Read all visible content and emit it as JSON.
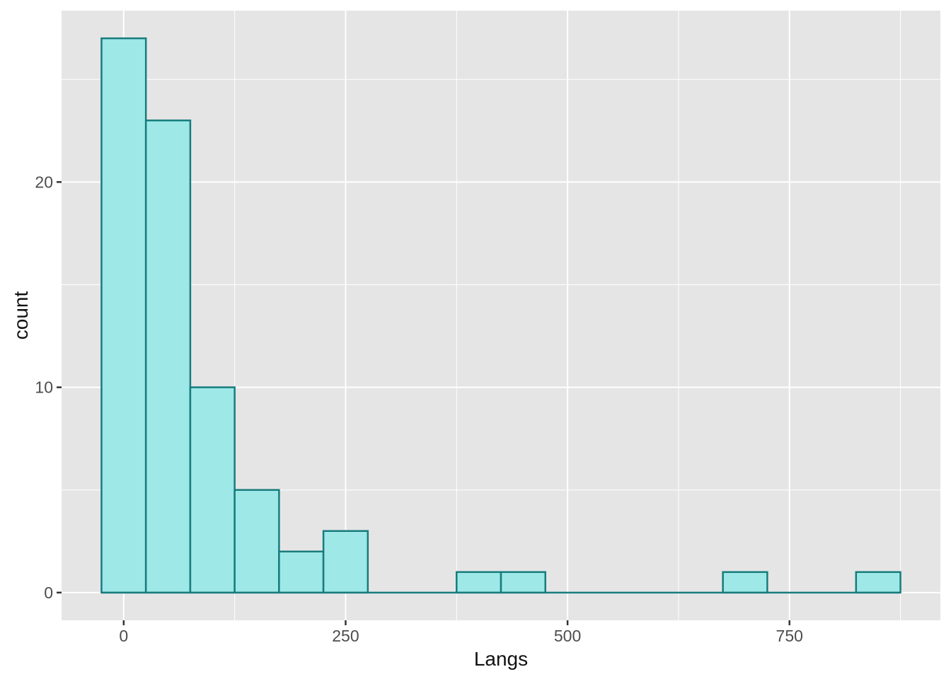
{
  "chart_data": {
    "type": "bar",
    "variant": "histogram",
    "title": "",
    "xlabel": "Langs",
    "ylabel": "count",
    "legend": "none",
    "grid": true,
    "bin_width": 50,
    "bin_centers": [
      0,
      50,
      100,
      150,
      200,
      250,
      300,
      350,
      400,
      450,
      500,
      550,
      600,
      650,
      700,
      750,
      800,
      850
    ],
    "counts": [
      27,
      23,
      10,
      5,
      2,
      3,
      0,
      0,
      1,
      1,
      0,
      0,
      0,
      0,
      1,
      0,
      0,
      1
    ],
    "x_ticks_major": [
      0,
      250,
      500,
      750
    ],
    "x_ticks_minor": [
      125,
      375,
      625,
      875
    ],
    "y_ticks_major": [
      0,
      10,
      20
    ],
    "y_ticks_minor": [
      5,
      15,
      25
    ],
    "x_tick_labels": [
      "0",
      "250",
      "500",
      "750"
    ],
    "y_tick_labels": [
      "0",
      "10",
      "20"
    ],
    "x_domain": [
      -70,
      920
    ],
    "y_domain": [
      -1.35,
      28.35
    ],
    "colors": {
      "panel_bg": "#E5E5E5",
      "grid_major": "#FFFFFF",
      "grid_minor": "#FFFFFF",
      "bar_fill": "#9FE8E8",
      "bar_stroke": "#177C7C",
      "tick_mark": "#333333",
      "tick_label": "#4D4D4D",
      "axis_title": "#111111",
      "figure_bg": "#FFFFFF"
    }
  }
}
